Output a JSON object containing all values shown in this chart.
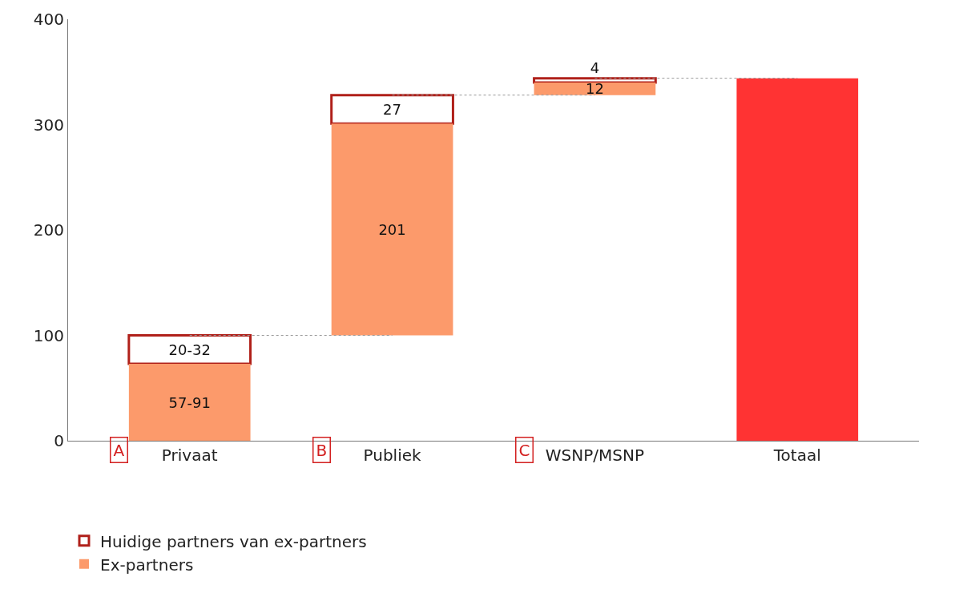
{
  "chart_data": {
    "type": "bar",
    "categories": [
      "Privaat",
      "Publiek",
      "WSNP/MSNP",
      "Totaal"
    ],
    "series": [
      {
        "name": "Ex-partners",
        "color": "#fc9a6b",
        "values": [
          73,
          201,
          12,
          null
        ],
        "base": [
          0,
          100,
          328,
          null
        ],
        "value_labels": [
          "57-91",
          "201",
          "12",
          null
        ]
      },
      {
        "name": "Huidige partners van ex-partners",
        "color": "#ffffff",
        "values": [
          27,
          27,
          4,
          null
        ],
        "base": [
          73,
          301,
          340,
          null
        ],
        "value_labels": [
          "20-32",
          "27",
          "4",
          null
        ]
      },
      {
        "color": "#ff3333",
        "values": [
          null,
          null,
          null,
          344
        ],
        "base": [
          null,
          null,
          null,
          0
        ]
      },
      {
        "type": "line",
        "x": [
          "Privaat",
          "Publiek"
        ],
        "values": [
          100,
          100
        ],
        "color": "#999999",
        "line_style": "dotted"
      },
      {
        "type": "line",
        "x": [
          "Publiek",
          "WSNP/MSNP"
        ],
        "values": [
          328,
          328
        ],
        "color": "#999999",
        "line_style": "dotted"
      },
      {
        "type": "line",
        "x": [
          "WSNP/MSNP",
          "Totaal"
        ],
        "values": [
          344,
          344
        ],
        "color": "#999999",
        "line_style": "dotted"
      }
    ],
    "annotations": [
      "A",
      "B",
      "C"
    ],
    "ylim": [
      0,
      400
    ],
    "yticks": [
      0,
      100,
      200,
      300,
      400
    ],
    "grid": false,
    "legend": "bottom left"
  }
}
